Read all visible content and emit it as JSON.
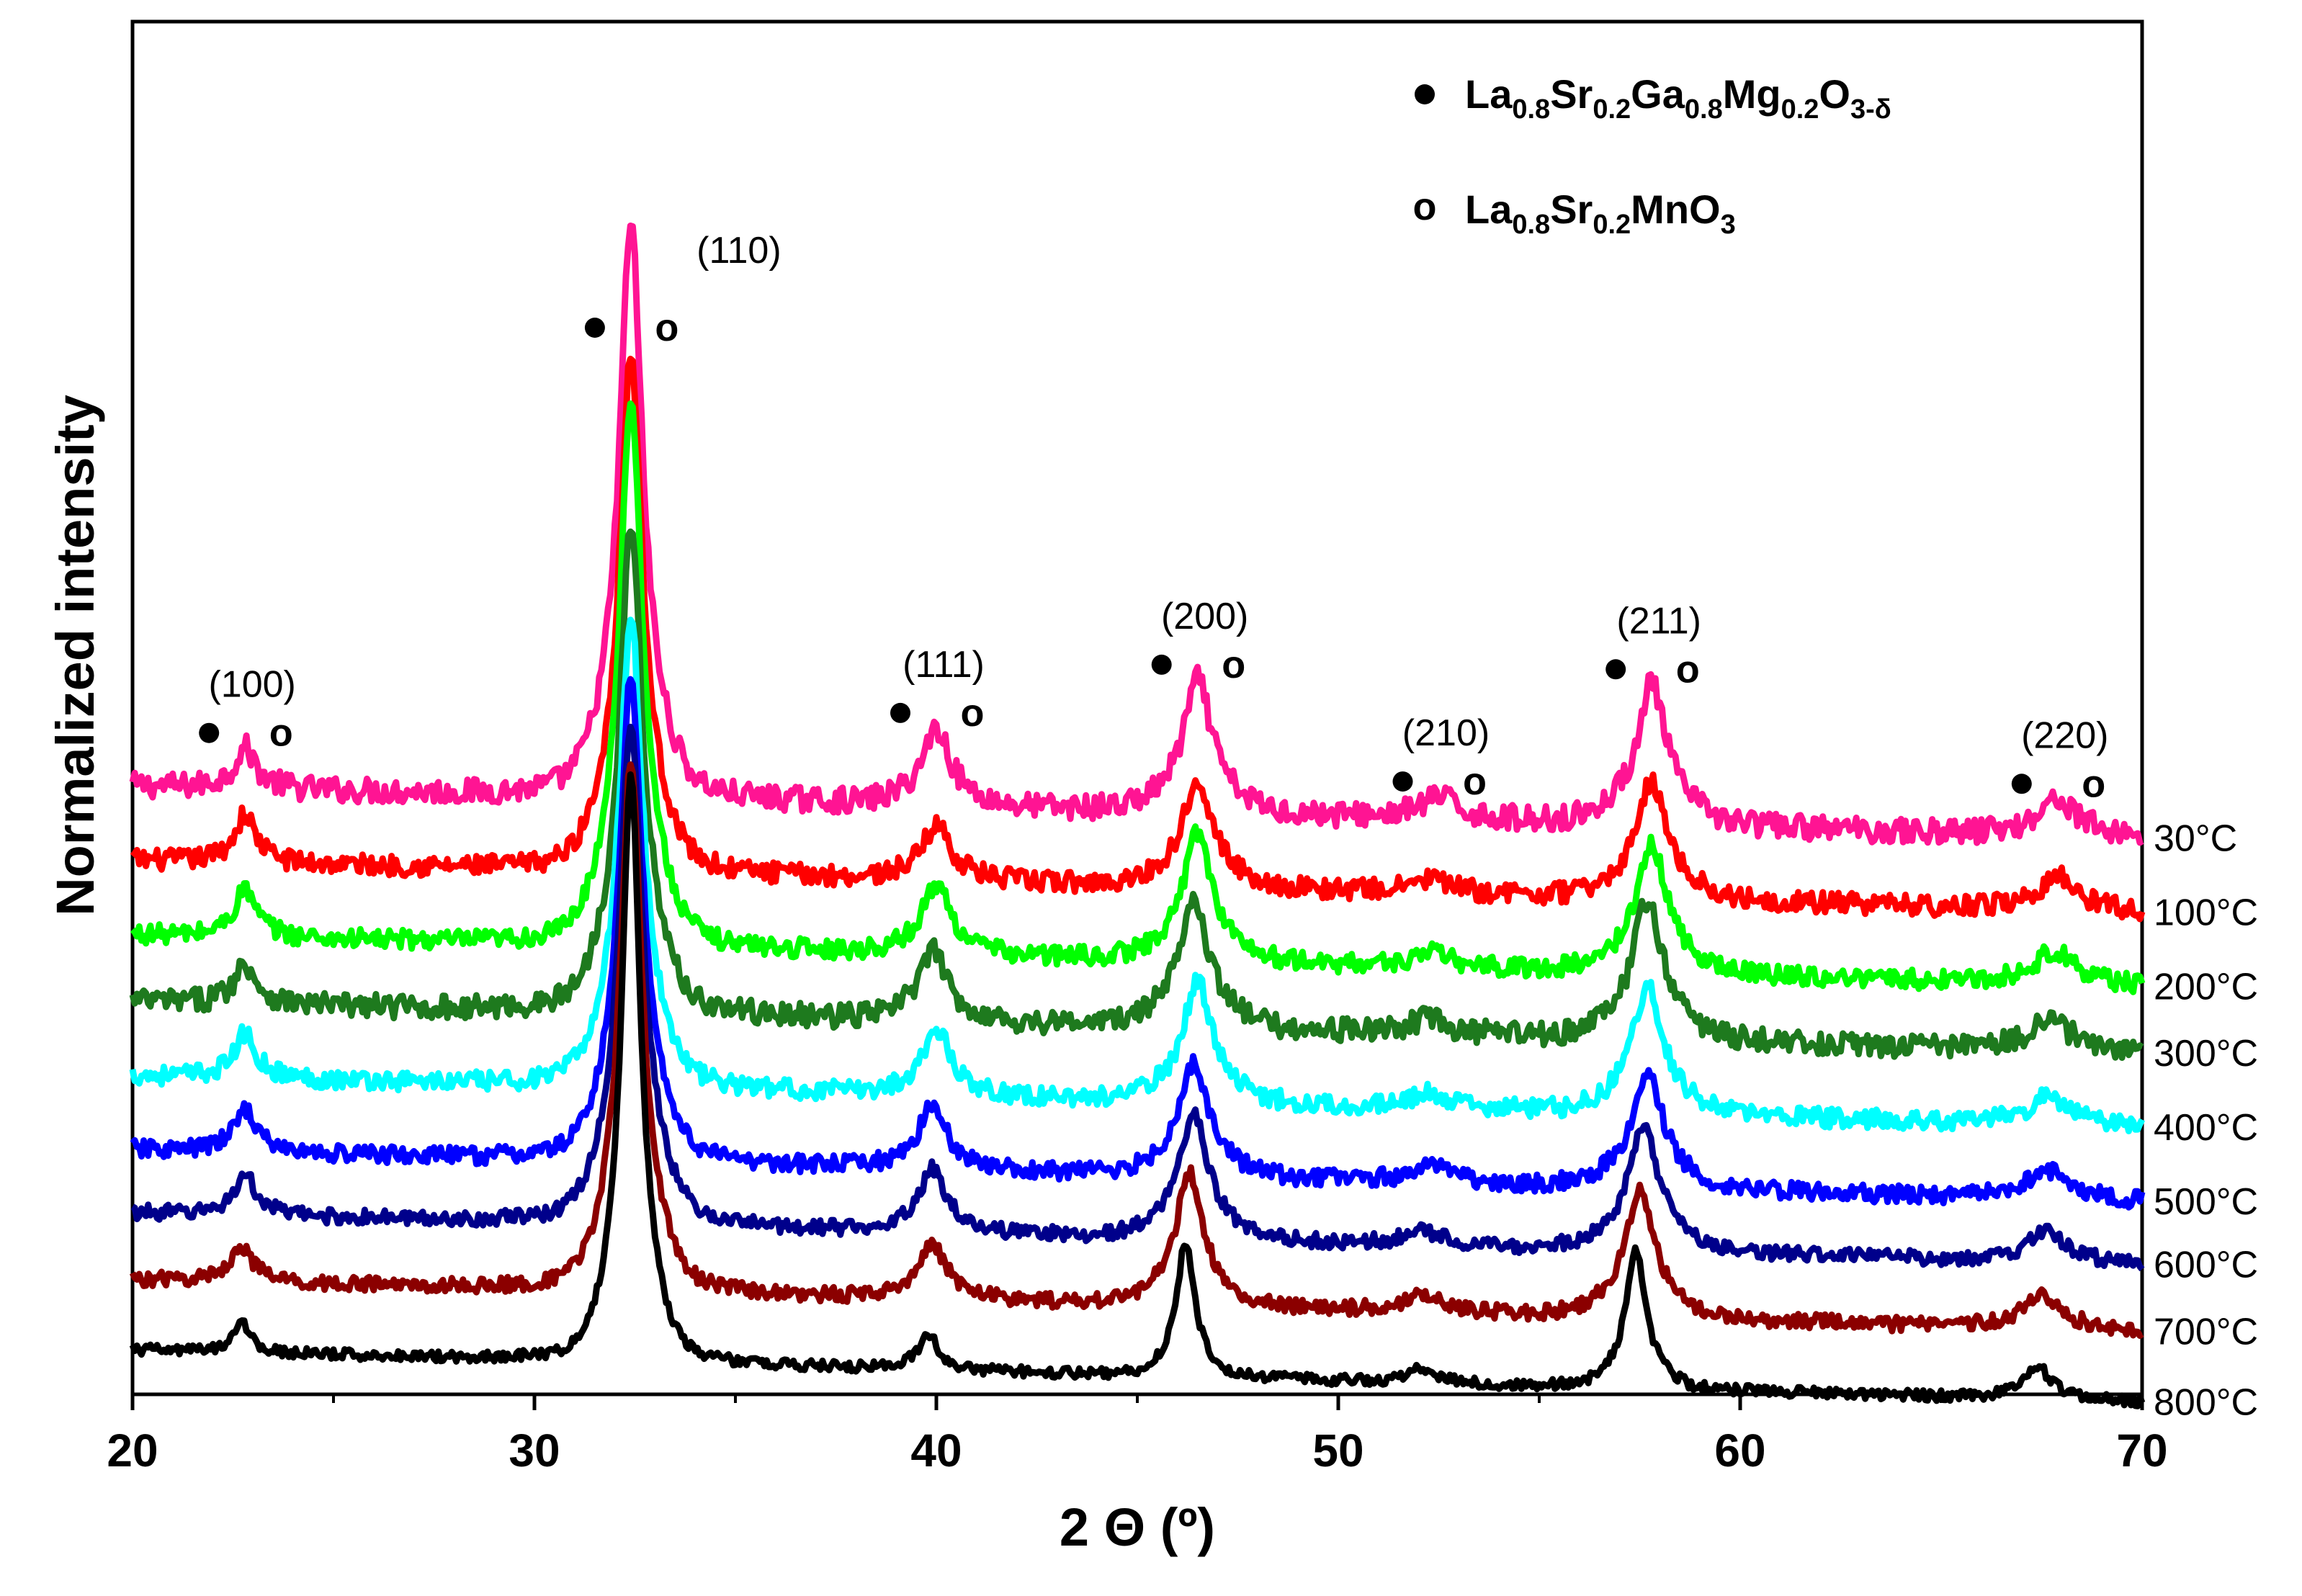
{
  "chart_data": {
    "type": "line",
    "title": "",
    "xlabel": "2 Θ (º)",
    "ylabel": "Normalized intensity",
    "xlim": [
      20,
      70
    ],
    "xticks": [
      20,
      30,
      40,
      50,
      60,
      70
    ],
    "x_tick_labels": [
      "20",
      "30",
      "40",
      "50",
      "60",
      "70"
    ],
    "y_ticks_shown": false,
    "legend": {
      "placement": "top-right",
      "entries": [
        {
          "marker": "filled-circle",
          "label": "La0.8Sr0.2Ga0.8Mg0.2O3-δ",
          "parts": [
            {
              "t": "La",
              "sub": false
            },
            {
              "t": "0.8",
              "sub": true
            },
            {
              "t": "Sr",
              "sub": false
            },
            {
              "t": "0.2",
              "sub": true
            },
            {
              "t": "Ga",
              "sub": false
            },
            {
              "t": "0.8",
              "sub": true
            },
            {
              "t": "Mg",
              "sub": false
            },
            {
              "t": "0.2",
              "sub": true
            },
            {
              "t": "O",
              "sub": false
            },
            {
              "t": "3-δ",
              "sub": true
            }
          ]
        },
        {
          "marker": "open-circle",
          "label": "La0.8Sr0.2MnO3",
          "parts": [
            {
              "t": "La",
              "sub": false
            },
            {
              "t": "0.8",
              "sub": true
            },
            {
              "t": "Sr",
              "sub": false
            },
            {
              "t": "0.2",
              "sub": true
            },
            {
              "t": "MnO",
              "sub": false
            },
            {
              "t": "3",
              "sub": true
            }
          ]
        }
      ]
    },
    "peak_annotations": [
      {
        "label": "(100)",
        "x": 22.8,
        "filled_marker": true,
        "open_marker": true
      },
      {
        "label": "(110)",
        "x": 32.4,
        "filled_marker": true,
        "open_marker": true
      },
      {
        "label": "(111)",
        "x": 40.0,
        "filled_marker": true,
        "open_marker": true
      },
      {
        "label": "(200)",
        "x": 46.5,
        "filled_marker": true,
        "open_marker": true
      },
      {
        "label": "(210)",
        "x": 52.5,
        "filled_marker": true,
        "open_marker": true
      },
      {
        "label": "(211)",
        "x": 57.8,
        "filled_marker": true,
        "open_marker": true
      },
      {
        "label": "(220)",
        "x": 67.9,
        "filled_marker": true,
        "open_marker": true
      }
    ],
    "open_marker_glyph": "o",
    "series": [
      {
        "name": "30°C",
        "color": "#ff1493",
        "baseline_offset": 8.2,
        "drift": 0.7,
        "noise": 0.17,
        "shift": 0.0,
        "peaks": [
          [
            22.8,
            0.55,
            0.28
          ],
          [
            32.4,
            7.8,
            0.32
          ],
          [
            40.0,
            1.05,
            0.38
          ],
          [
            46.5,
            1.8,
            0.4
          ],
          [
            52.5,
            0.3,
            0.45
          ],
          [
            57.8,
            1.9,
            0.42
          ],
          [
            67.9,
            0.5,
            0.5
          ]
        ]
      },
      {
        "name": "100°C",
        "color": "#ff0000",
        "baseline_offset": 7.2,
        "drift": 0.7,
        "noise": 0.14,
        "shift": 0.0,
        "peaks": [
          [
            22.8,
            0.65,
            0.28
          ],
          [
            32.4,
            7.0,
            0.32
          ],
          [
            40.0,
            0.75,
            0.38
          ],
          [
            46.5,
            1.5,
            0.4
          ],
          [
            52.3,
            0.2,
            0.45
          ],
          [
            57.8,
            1.6,
            0.42
          ],
          [
            67.9,
            0.45,
            0.5
          ]
        ]
      },
      {
        "name": "200°C",
        "color": "#00ff00",
        "baseline_offset": 6.2,
        "drift": 0.7,
        "noise": 0.13,
        "shift": 0.0,
        "peaks": [
          [
            22.8,
            0.65,
            0.28
          ],
          [
            32.4,
            7.4,
            0.32
          ],
          [
            40.0,
            0.95,
            0.38
          ],
          [
            46.5,
            1.75,
            0.4
          ],
          [
            52.3,
            0.2,
            0.45
          ],
          [
            57.8,
            1.75,
            0.42
          ],
          [
            67.8,
            0.45,
            0.5
          ]
        ]
      },
      {
        "name": "300°C",
        "color": "#1e7a1e",
        "baseline_offset": 5.3,
        "drift": 0.7,
        "noise": 0.16,
        "shift": 0.0,
        "peaks": [
          [
            22.8,
            0.55,
            0.28
          ],
          [
            32.4,
            6.6,
            0.32
          ],
          [
            39.9,
            0.95,
            0.38
          ],
          [
            46.4,
            1.8,
            0.4
          ],
          [
            52.2,
            0.2,
            0.45
          ],
          [
            57.7,
            1.9,
            0.42
          ],
          [
            67.7,
            0.45,
            0.5
          ]
        ]
      },
      {
        "name": "400°C",
        "color": "#00ffff",
        "baseline_offset": 4.3,
        "drift": 0.7,
        "noise": 0.13,
        "shift": 0.0,
        "peaks": [
          [
            22.8,
            0.6,
            0.28
          ],
          [
            32.4,
            6.4,
            0.32
          ],
          [
            40.0,
            0.9,
            0.38
          ],
          [
            46.5,
            1.65,
            0.4
          ],
          [
            52.3,
            0.2,
            0.45
          ],
          [
            57.7,
            1.75,
            0.42
          ],
          [
            67.7,
            0.4,
            0.5
          ]
        ]
      },
      {
        "name": "500°C",
        "color": "#0000ff",
        "baseline_offset": 3.3,
        "drift": 0.7,
        "noise": 0.12,
        "shift": 0.0,
        "peaks": [
          [
            22.8,
            0.6,
            0.28
          ],
          [
            32.4,
            6.6,
            0.32
          ],
          [
            39.9,
            0.85,
            0.38
          ],
          [
            46.4,
            1.55,
            0.4
          ],
          [
            52.3,
            0.25,
            0.45
          ],
          [
            57.7,
            1.6,
            0.42
          ],
          [
            67.6,
            0.4,
            0.5
          ]
        ]
      },
      {
        "name": "600°C",
        "color": "#00008b",
        "baseline_offset": 2.45,
        "drift": 0.7,
        "noise": 0.1,
        "shift": 0.0,
        "peaks": [
          [
            22.8,
            0.55,
            0.28
          ],
          [
            32.4,
            6.8,
            0.32
          ],
          [
            39.9,
            0.85,
            0.38
          ],
          [
            46.4,
            1.7,
            0.4
          ],
          [
            52.1,
            0.2,
            0.45
          ],
          [
            57.6,
            1.7,
            0.42
          ],
          [
            67.6,
            0.4,
            0.5
          ]
        ]
      },
      {
        "name": "700°C",
        "color": "#8b0000",
        "baseline_offset": 1.55,
        "drift": 0.7,
        "noise": 0.1,
        "shift": 0.0,
        "peaks": [
          [
            22.7,
            0.5,
            0.28
          ],
          [
            32.4,
            7.2,
            0.3
          ],
          [
            39.9,
            0.75,
            0.38
          ],
          [
            46.3,
            1.8,
            0.38
          ],
          [
            52.1,
            0.25,
            0.45
          ],
          [
            57.5,
            1.75,
            0.4
          ],
          [
            67.5,
            0.45,
            0.5
          ]
        ]
      },
      {
        "name": "800°C",
        "color": "#000000",
        "baseline_offset": 0.6,
        "drift": 0.7,
        "noise": 0.07,
        "shift": 0.0,
        "peaks": [
          [
            22.7,
            0.45,
            0.2
          ],
          [
            32.4,
            8.0,
            0.26
          ],
          [
            39.8,
            0.5,
            0.25
          ],
          [
            46.2,
            1.8,
            0.25
          ],
          [
            52.1,
            0.2,
            0.3
          ],
          [
            57.4,
            1.85,
            0.28
          ],
          [
            67.4,
            0.45,
            0.35
          ]
        ]
      }
    ],
    "ylim": [
      0,
      18.5
    ]
  }
}
